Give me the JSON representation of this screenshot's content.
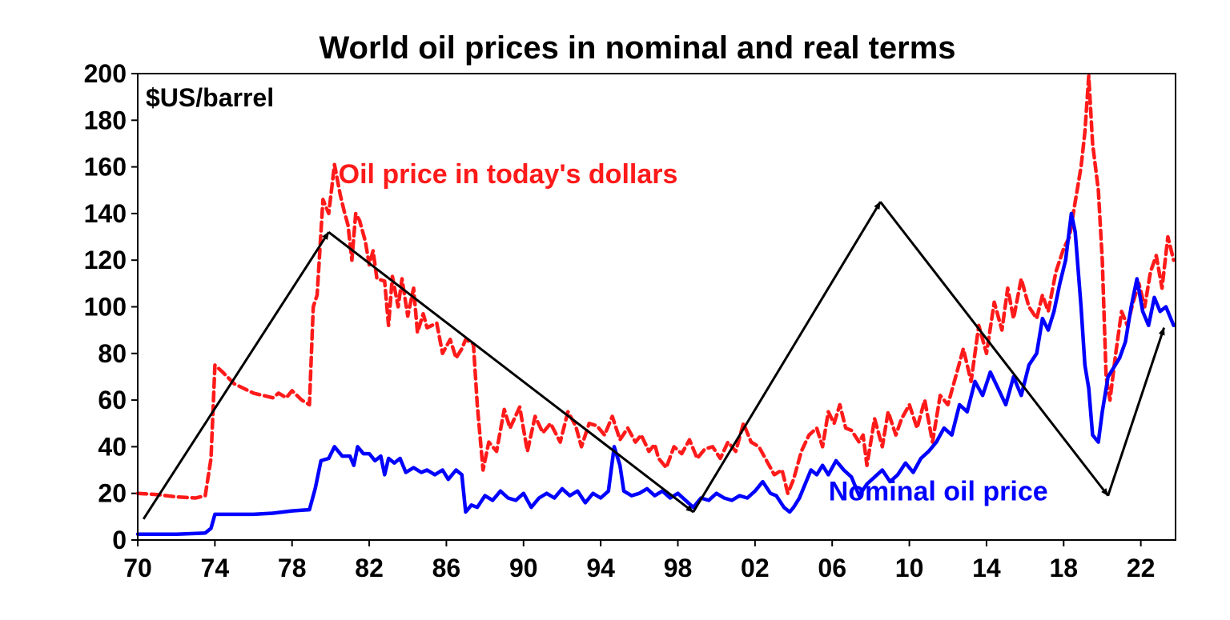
{
  "chart_data": {
    "type": "line",
    "title": "World oil prices in nominal and real terms",
    "ylabel": "$US/barrel",
    "xlabel": "",
    "ylim": [
      0,
      200
    ],
    "xlim": [
      1970,
      2023.8
    ],
    "yticks": [
      0,
      20,
      40,
      60,
      80,
      100,
      120,
      140,
      160,
      180,
      200
    ],
    "xticks": [
      {
        "year": 1970,
        "label": "70"
      },
      {
        "year": 1974,
        "label": "74"
      },
      {
        "year": 1978,
        "label": "78"
      },
      {
        "year": 1982,
        "label": "82"
      },
      {
        "year": 1986,
        "label": "86"
      },
      {
        "year": 1990,
        "label": "90"
      },
      {
        "year": 1994,
        "label": "94"
      },
      {
        "year": 1998,
        "label": "98"
      },
      {
        "year": 2002,
        "label": "02"
      },
      {
        "year": 2006,
        "label": "06"
      },
      {
        "year": 2010,
        "label": "10"
      },
      {
        "year": 2014,
        "label": "14"
      },
      {
        "year": 2018,
        "label": "18"
      },
      {
        "year": 2022,
        "label": "22"
      }
    ],
    "colors": {
      "real": "#ff1a1a",
      "nominal": "#0000ff",
      "trend": "#000000"
    },
    "series": [
      {
        "name": "Oil price in today's dollars",
        "color": "#ff1a1a",
        "style": "dashed",
        "label_year": 1989.2,
        "label_value": 153,
        "points": [
          [
            1970.0,
            20
          ],
          [
            1971.0,
            19.5
          ],
          [
            1972.0,
            18.5
          ],
          [
            1973.0,
            18
          ],
          [
            1973.5,
            19
          ],
          [
            1973.8,
            35
          ],
          [
            1974.0,
            75
          ],
          [
            1974.4,
            72
          ],
          [
            1975.0,
            67
          ],
          [
            1976.0,
            63
          ],
          [
            1977.0,
            61
          ],
          [
            1977.3,
            63
          ],
          [
            1977.7,
            61
          ],
          [
            1978.0,
            64
          ],
          [
            1978.5,
            60
          ],
          [
            1978.9,
            58
          ],
          [
            1979.1,
            100
          ],
          [
            1979.3,
            105
          ],
          [
            1979.6,
            146
          ],
          [
            1979.9,
            140
          ],
          [
            1980.2,
            161
          ],
          [
            1980.5,
            148
          ],
          [
            1980.7,
            141
          ],
          [
            1980.9,
            135
          ],
          [
            1981.1,
            120
          ],
          [
            1981.3,
            140
          ],
          [
            1981.5,
            137
          ],
          [
            1981.8,
            128
          ],
          [
            1982.0,
            118
          ],
          [
            1982.2,
            124
          ],
          [
            1982.4,
            112
          ],
          [
            1982.8,
            111
          ],
          [
            1983.0,
            92
          ],
          [
            1983.2,
            113
          ],
          [
            1983.5,
            100
          ],
          [
            1983.7,
            112
          ],
          [
            1984.0,
            96
          ],
          [
            1984.3,
            108
          ],
          [
            1984.5,
            89
          ],
          [
            1984.8,
            97
          ],
          [
            1985.0,
            91
          ],
          [
            1985.5,
            93
          ],
          [
            1985.8,
            80
          ],
          [
            1986.2,
            86
          ],
          [
            1986.5,
            78
          ],
          [
            1986.8,
            82
          ],
          [
            1987.0,
            86
          ],
          [
            1987.4,
            84
          ],
          [
            1987.6,
            58
          ],
          [
            1987.9,
            30
          ],
          [
            1988.2,
            42
          ],
          [
            1988.6,
            38
          ],
          [
            1989.0,
            56
          ],
          [
            1989.3,
            48
          ],
          [
            1989.8,
            57
          ],
          [
            1990.2,
            38
          ],
          [
            1990.6,
            53
          ],
          [
            1991.0,
            46
          ],
          [
            1991.4,
            50
          ],
          [
            1991.9,
            42
          ],
          [
            1992.3,
            55
          ],
          [
            1992.7,
            49
          ],
          [
            1993.0,
            40
          ],
          [
            1993.4,
            50
          ],
          [
            1993.8,
            49
          ],
          [
            1994.2,
            45
          ],
          [
            1994.6,
            53
          ],
          [
            1995.0,
            43
          ],
          [
            1995.4,
            48
          ],
          [
            1995.8,
            42
          ],
          [
            1996.1,
            45
          ],
          [
            1996.5,
            38
          ],
          [
            1996.8,
            41
          ],
          [
            1997.0,
            35
          ],
          [
            1997.4,
            31
          ],
          [
            1997.8,
            40
          ],
          [
            1998.2,
            37
          ],
          [
            1998.6,
            43
          ],
          [
            1999.0,
            35
          ],
          [
            1999.4,
            39
          ],
          [
            1999.8,
            40
          ],
          [
            2000.2,
            35
          ],
          [
            2000.6,
            42
          ],
          [
            2001.0,
            38
          ],
          [
            2001.4,
            50
          ],
          [
            2001.8,
            42
          ],
          [
            2002.2,
            40
          ],
          [
            2002.6,
            34
          ],
          [
            2003.0,
            28
          ],
          [
            2003.4,
            30
          ],
          [
            2003.7,
            20
          ],
          [
            2004.0,
            26
          ],
          [
            2004.4,
            38
          ],
          [
            2004.8,
            45
          ],
          [
            2005.2,
            48
          ],
          [
            2005.5,
            40
          ],
          [
            2005.8,
            55
          ],
          [
            2006.1,
            50
          ],
          [
            2006.4,
            58
          ],
          [
            2006.7,
            48
          ],
          [
            2007.0,
            47
          ],
          [
            2007.4,
            42
          ],
          [
            2007.6,
            45
          ],
          [
            2007.8,
            32
          ],
          [
            2008.2,
            52
          ],
          [
            2008.6,
            40
          ],
          [
            2008.9,
            55
          ],
          [
            2009.3,
            45
          ],
          [
            2009.6,
            52
          ],
          [
            2010.0,
            58
          ],
          [
            2010.4,
            48
          ],
          [
            2010.8,
            60
          ],
          [
            2011.2,
            42
          ],
          [
            2011.6,
            62
          ],
          [
            2012.0,
            58
          ],
          [
            2012.4,
            70
          ],
          [
            2012.8,
            82
          ],
          [
            2013.2,
            68
          ],
          [
            2013.6,
            92
          ],
          [
            2014.0,
            80
          ],
          [
            2014.4,
            102
          ],
          [
            2014.8,
            90
          ],
          [
            2015.1,
            108
          ],
          [
            2015.4,
            95
          ],
          [
            2015.8,
            112
          ],
          [
            2016.2,
            100
          ],
          [
            2016.6,
            95
          ],
          [
            2016.9,
            105
          ],
          [
            2017.2,
            98
          ],
          [
            2017.6,
            115
          ],
          [
            2018.0,
            125
          ],
          [
            2018.3,
            130
          ],
          [
            2018.6,
            145
          ],
          [
            2018.9,
            160
          ],
          [
            2019.1,
            175
          ],
          [
            2019.3,
            199
          ],
          [
            2019.5,
            170
          ],
          [
            2019.8,
            150
          ],
          [
            2020.0,
            120
          ],
          [
            2020.2,
            70
          ],
          [
            2020.4,
            60
          ],
          [
            2020.7,
            80
          ],
          [
            2021.0,
            98
          ],
          [
            2021.3,
            92
          ],
          [
            2021.6,
            102
          ],
          [
            2021.9,
            110
          ],
          [
            2022.2,
            100
          ],
          [
            2022.5,
            115
          ],
          [
            2022.8,
            122
          ],
          [
            2023.1,
            108
          ],
          [
            2023.4,
            130
          ],
          [
            2023.7,
            120
          ]
        ]
      },
      {
        "name": "Nominal oil price",
        "color": "#0000ff",
        "style": "solid",
        "label_year": 2011.5,
        "label_value": 17,
        "points": [
          [
            1970.0,
            2.5
          ],
          [
            1972.0,
            2.5
          ],
          [
            1973.5,
            3
          ],
          [
            1973.8,
            5
          ],
          [
            1974.0,
            11
          ],
          [
            1975.0,
            11
          ],
          [
            1976.0,
            11
          ],
          [
            1977.0,
            11.5
          ],
          [
            1978.0,
            12.5
          ],
          [
            1978.9,
            13
          ],
          [
            1979.2,
            22
          ],
          [
            1979.5,
            34
          ],
          [
            1979.9,
            35
          ],
          [
            1980.2,
            40
          ],
          [
            1980.6,
            36
          ],
          [
            1981.0,
            36
          ],
          [
            1981.2,
            32
          ],
          [
            1981.4,
            40
          ],
          [
            1981.7,
            37
          ],
          [
            1982.0,
            37
          ],
          [
            1982.3,
            34
          ],
          [
            1982.6,
            36
          ],
          [
            1982.8,
            28
          ],
          [
            1983.0,
            35
          ],
          [
            1983.3,
            33
          ],
          [
            1983.6,
            35
          ],
          [
            1983.9,
            29
          ],
          [
            1984.3,
            31
          ],
          [
            1984.7,
            29
          ],
          [
            1985.0,
            30
          ],
          [
            1985.4,
            28
          ],
          [
            1985.8,
            30
          ],
          [
            1986.1,
            26
          ],
          [
            1986.5,
            30
          ],
          [
            1986.8,
            28
          ],
          [
            1987.0,
            12
          ],
          [
            1987.3,
            15
          ],
          [
            1987.6,
            14
          ],
          [
            1988.0,
            19
          ],
          [
            1988.4,
            17
          ],
          [
            1988.8,
            21
          ],
          [
            1989.2,
            18
          ],
          [
            1989.6,
            17
          ],
          [
            1990.0,
            20
          ],
          [
            1990.4,
            14
          ],
          [
            1990.8,
            18
          ],
          [
            1991.2,
            20
          ],
          [
            1991.6,
            18
          ],
          [
            1992.0,
            22
          ],
          [
            1992.4,
            19
          ],
          [
            1992.8,
            21
          ],
          [
            1993.2,
            16
          ],
          [
            1993.6,
            20
          ],
          [
            1994.0,
            18
          ],
          [
            1994.4,
            21
          ],
          [
            1994.7,
            40
          ],
          [
            1995.0,
            32
          ],
          [
            1995.2,
            21
          ],
          [
            1995.6,
            19
          ],
          [
            1996.0,
            20
          ],
          [
            1996.4,
            22
          ],
          [
            1996.8,
            19
          ],
          [
            1997.2,
            21
          ],
          [
            1997.6,
            18
          ],
          [
            1998.0,
            20
          ],
          [
            1998.4,
            17
          ],
          [
            1998.8,
            14
          ],
          [
            1999.2,
            18
          ],
          [
            1999.6,
            17
          ],
          [
            2000.0,
            20
          ],
          [
            2000.4,
            18
          ],
          [
            2000.8,
            17
          ],
          [
            2001.2,
            19
          ],
          [
            2001.6,
            18
          ],
          [
            2002.0,
            21
          ],
          [
            2002.4,
            25
          ],
          [
            2002.8,
            20
          ],
          [
            2003.1,
            19
          ],
          [
            2003.5,
            14
          ],
          [
            2003.8,
            12
          ],
          [
            2004.0,
            14
          ],
          [
            2004.3,
            18
          ],
          [
            2004.6,
            24
          ],
          [
            2004.9,
            30
          ],
          [
            2005.2,
            28
          ],
          [
            2005.5,
            32
          ],
          [
            2005.8,
            28
          ],
          [
            2006.2,
            34
          ],
          [
            2006.6,
            30
          ],
          [
            2007.0,
            27
          ],
          [
            2007.4,
            19
          ],
          [
            2007.8,
            24
          ],
          [
            2008.2,
            27
          ],
          [
            2008.6,
            30
          ],
          [
            2009.0,
            25
          ],
          [
            2009.4,
            28
          ],
          [
            2009.8,
            33
          ],
          [
            2010.2,
            29
          ],
          [
            2010.6,
            35
          ],
          [
            2011.0,
            38
          ],
          [
            2011.4,
            42
          ],
          [
            2011.8,
            48
          ],
          [
            2012.2,
            45
          ],
          [
            2012.6,
            58
          ],
          [
            2013.0,
            55
          ],
          [
            2013.4,
            68
          ],
          [
            2013.8,
            62
          ],
          [
            2014.2,
            72
          ],
          [
            2014.6,
            65
          ],
          [
            2015.0,
            58
          ],
          [
            2015.4,
            70
          ],
          [
            2015.8,
            62
          ],
          [
            2016.2,
            75
          ],
          [
            2016.6,
            80
          ],
          [
            2016.9,
            95
          ],
          [
            2017.2,
            90
          ],
          [
            2017.5,
            98
          ],
          [
            2017.8,
            110
          ],
          [
            2018.1,
            120
          ],
          [
            2018.4,
            140
          ],
          [
            2018.6,
            132
          ],
          [
            2018.9,
            100
          ],
          [
            2019.1,
            75
          ],
          [
            2019.3,
            65
          ],
          [
            2019.5,
            45
          ],
          [
            2019.8,
            42
          ],
          [
            2020.0,
            55
          ],
          [
            2020.3,
            70
          ],
          [
            2020.6,
            74
          ],
          [
            2020.9,
            78
          ],
          [
            2021.2,
            85
          ],
          [
            2021.5,
            100
          ],
          [
            2021.8,
            112
          ],
          [
            2022.1,
            98
          ],
          [
            2022.4,
            92
          ],
          [
            2022.7,
            104
          ],
          [
            2023.0,
            98
          ],
          [
            2023.3,
            100
          ],
          [
            2023.7,
            92
          ]
        ]
      }
    ],
    "trend_lines": [
      [
        [
          1970.3,
          9
        ],
        [
          1979.9,
          132
        ]
      ],
      [
        [
          1979.9,
          132
        ],
        [
          1998.8,
          12
        ]
      ],
      [
        [
          1998.8,
          12
        ],
        [
          2008.5,
          145
        ]
      ],
      [
        [
          2008.5,
          145
        ],
        [
          2020.3,
          19
        ]
      ],
      [
        [
          2020.3,
          19
        ],
        [
          2023.2,
          91
        ]
      ]
    ]
  }
}
